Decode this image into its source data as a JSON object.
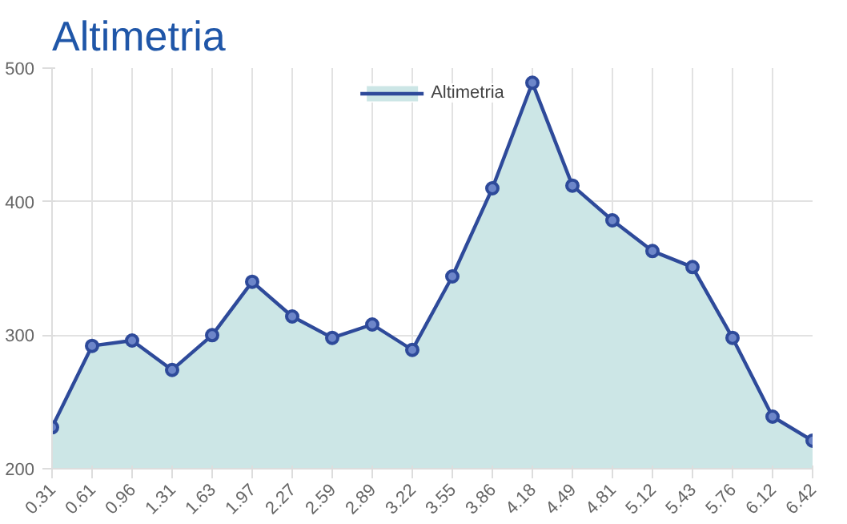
{
  "chart_data": {
    "type": "area",
    "title": "Altimetria",
    "categories": [
      "0.31",
      "0.61",
      "0.96",
      "1.31",
      "1.63",
      "1.97",
      "2.27",
      "2.59",
      "2.89",
      "3.22",
      "3.55",
      "3.86",
      "4.18",
      "4.49",
      "4.81",
      "5.12",
      "5.43",
      "5.76",
      "6.12",
      "6.42"
    ],
    "series": [
      {
        "name": "Altimetria",
        "color": "#2e4a9a",
        "values": [
          231,
          292,
          296,
          274,
          300,
          340,
          314,
          298,
          308,
          289,
          344,
          410,
          489,
          412,
          386,
          363,
          351,
          298,
          239,
          221
        ]
      }
    ],
    "ylim": [
      200,
      500
    ],
    "yticks": [
      200,
      300,
      400,
      500
    ],
    "grid": true,
    "legend": "top",
    "marker": "circle",
    "line_style": "solid"
  }
}
